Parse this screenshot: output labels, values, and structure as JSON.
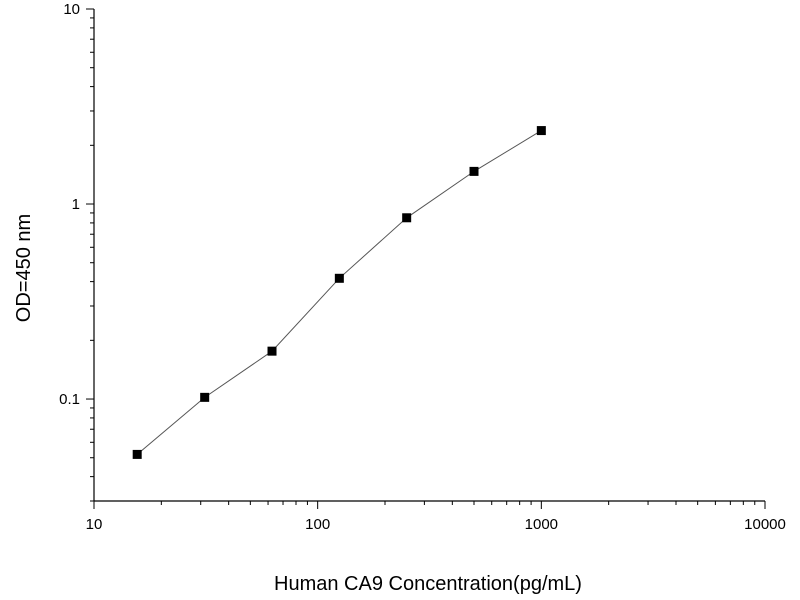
{
  "chart_data": {
    "type": "line",
    "xlabel": "Human CA9 Concentration(pg/mL)",
    "ylabel": "OD=450 nm",
    "x_scale": "log",
    "y_scale": "log",
    "xlim": [
      10,
      10000
    ],
    "ylim": [
      0.03,
      10
    ],
    "x_tick_labels": [
      "10",
      "100",
      "1000",
      "10000"
    ],
    "y_tick_labels": [
      "0.1",
      "1",
      "10"
    ],
    "grid": false,
    "series": [
      {
        "x": [
          15.6,
          31.25,
          62.5,
          125,
          250,
          500,
          1000
        ],
        "y": [
          0.052,
          0.102,
          0.176,
          0.416,
          0.85,
          1.47,
          2.38
        ]
      }
    ],
    "colors": {
      "line": "#555555",
      "marker": "#000000",
      "axis": "#000000"
    }
  }
}
